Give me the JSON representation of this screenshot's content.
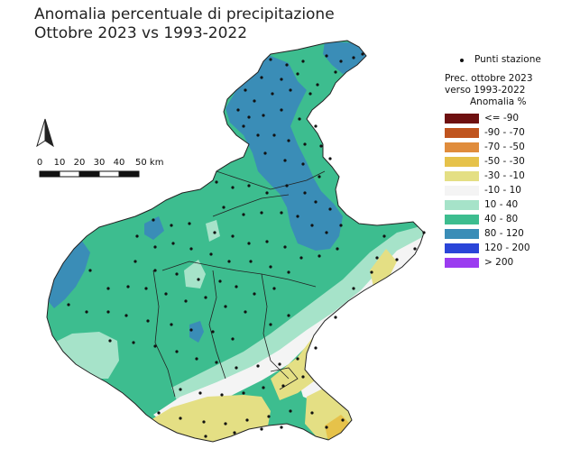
{
  "title": {
    "line1": "Anomalia percentuale di precipitazione",
    "line2": "Ottobre 2023 vs 1993-2022"
  },
  "legend": {
    "station_label": "Punti stazione",
    "heading1": "Prec. ottobre 2023",
    "heading2": "verso 1993-2022",
    "heading3": "Anomalia %",
    "classes": [
      {
        "label": "<= -90",
        "color": "#6e1010"
      },
      {
        "label": "-90 - -70",
        "color": "#c0541e"
      },
      {
        "label": "-70 - -50",
        "color": "#e08c3c"
      },
      {
        "label": "-50 - -30",
        "color": "#e6c24a"
      },
      {
        "label": "-30 - -10",
        "color": "#e4df84"
      },
      {
        "label": "-10 - 10",
        "color": "#f4f4f4"
      },
      {
        "label": "10 - 40",
        "color": "#a6e3c9"
      },
      {
        "label": "40 - 80",
        "color": "#3dbd8f"
      },
      {
        "label": "80 - 120",
        "color": "#3a8db7"
      },
      {
        "label": "120 - 200",
        "color": "#2a45d8"
      },
      {
        "label": "> 200",
        "color": "#9b3cf0"
      }
    ]
  },
  "scale_bar": {
    "ticks": [
      "0",
      "10",
      "20",
      "30",
      "40",
      "50 km"
    ]
  },
  "icons": {
    "north_arrow": "north-arrow-icon"
  }
}
